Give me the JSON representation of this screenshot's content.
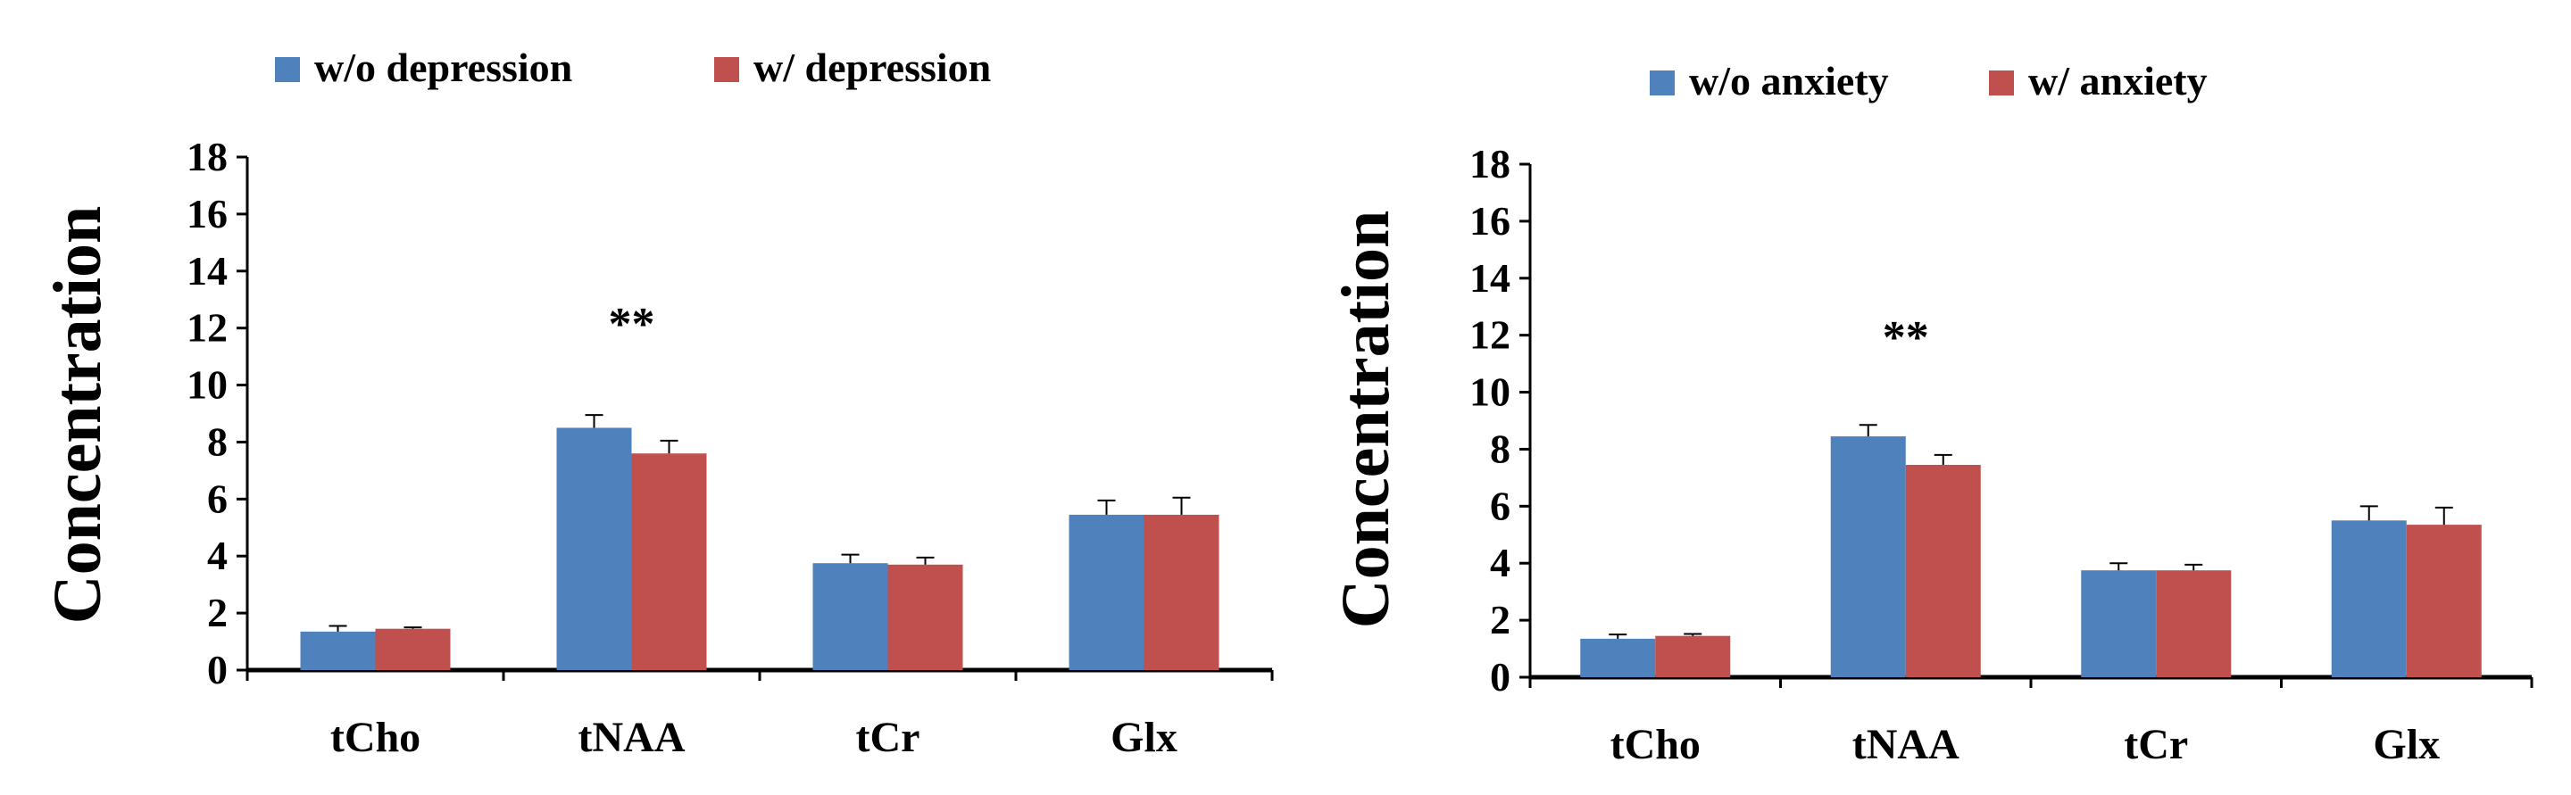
{
  "colors": {
    "series1": "#4F81BD",
    "series2": "#C0504D",
    "axis": "#000000"
  },
  "chart_data": [
    {
      "type": "bar",
      "title": "",
      "xlabel": "",
      "ylabel": "Concentration",
      "ylim": [
        0,
        18
      ],
      "yticks": [
        "0",
        "2",
        "4",
        "6",
        "8",
        "10",
        "12",
        "14",
        "16",
        "18"
      ],
      "categories": [
        "tCho",
        "tNAA",
        "tCr",
        "Glx"
      ],
      "series": [
        {
          "name": "w/o depression",
          "values": [
            1.35,
            8.5,
            3.75,
            5.45
          ],
          "errors": [
            0.2,
            0.45,
            0.3,
            0.5
          ]
        },
        {
          "name": "w/ depression",
          "values": [
            1.45,
            7.6,
            3.7,
            5.45
          ],
          "errors": [
            0.05,
            0.45,
            0.25,
            0.6
          ]
        }
      ],
      "annotations": [
        {
          "category": "tNAA",
          "text": "**"
        }
      ],
      "legend": "top-left"
    },
    {
      "type": "bar",
      "title": "",
      "xlabel": "",
      "ylabel": "Concentration",
      "ylim": [
        0,
        18
      ],
      "yticks": [
        "0",
        "2",
        "4",
        "6",
        "8",
        "10",
        "12",
        "14",
        "16",
        "18"
      ],
      "categories": [
        "tCho",
        "tNAA",
        "tCr",
        "Glx"
      ],
      "series": [
        {
          "name": "w/o anxiety",
          "values": [
            1.35,
            8.45,
            3.75,
            5.5
          ],
          "errors": [
            0.15,
            0.4,
            0.25,
            0.5
          ]
        },
        {
          "name": "w/ anxiety",
          "values": [
            1.45,
            7.45,
            3.75,
            5.35
          ],
          "errors": [
            0.07,
            0.35,
            0.2,
            0.6
          ]
        }
      ],
      "annotations": [
        {
          "category": "tNAA",
          "text": "**"
        }
      ],
      "legend": "top-center"
    }
  ]
}
